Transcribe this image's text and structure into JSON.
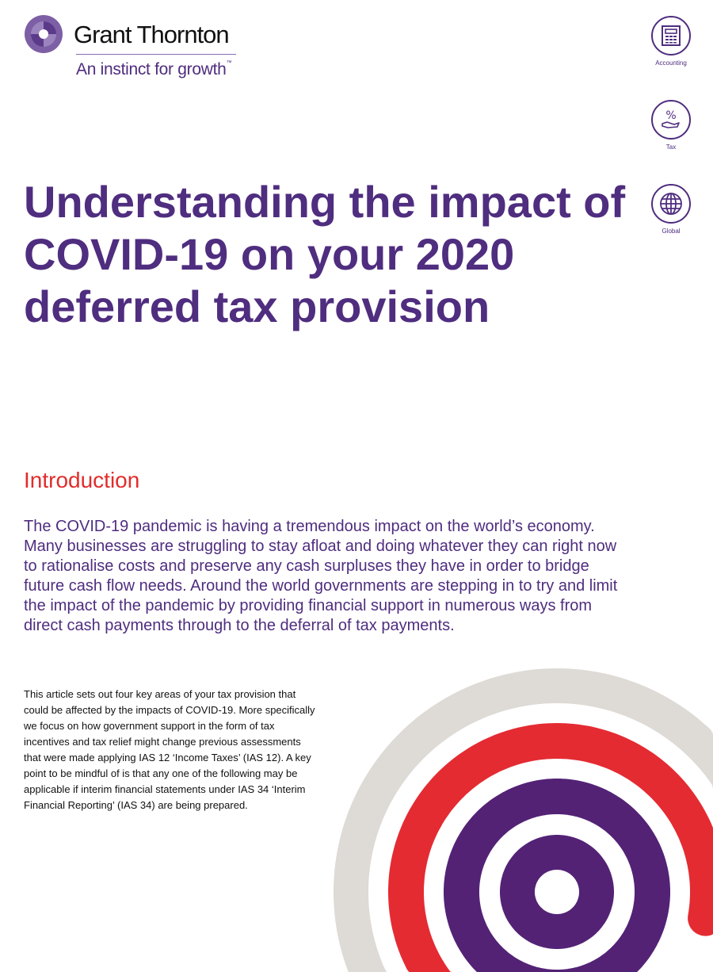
{
  "brand": {
    "name": "Grant Thornton",
    "tagline": "An instinct for growth",
    "trademark": "™",
    "colors": {
      "purple": "#4f2d7f",
      "red": "#e22c2c",
      "grey": "#dedad6"
    }
  },
  "services": [
    {
      "label": "Accounting",
      "icon": "calculator-icon"
    },
    {
      "label": "Tax",
      "icon": "percent-hand-icon"
    },
    {
      "label": "Global",
      "icon": "globe-icon"
    }
  ],
  "title": "Understanding the impact of COVID-19 on your 2020 deferred tax provision",
  "introduction": {
    "heading": "Introduction",
    "lead": "The COVID-19 pandemic is having a tremendous impact on the world’s economy. Many businesses are struggling to stay afloat and doing whatever they can right now to rationalise costs and preserve any cash surpluses they have in order to bridge future cash flow needs. Around the world governments are stepping in to try and limit the impact of the pandemic by providing financial support in numerous ways from direct cash payments through to the deferral of tax payments.",
    "body": "This article sets out four key areas of your tax provision that could be affected by the impacts of COVID-19. More specifically we focus on how government support in the form of tax incentives and tax relief might change previous assessments that were made applying IAS 12 ‘Income Taxes’ (IAS 12). A key point to be mindful of is that any one of the following may be applicable if interim financial statements under IAS 34 ‘Interim Financial Reporting’ (IAS 34) are being prepared."
  }
}
